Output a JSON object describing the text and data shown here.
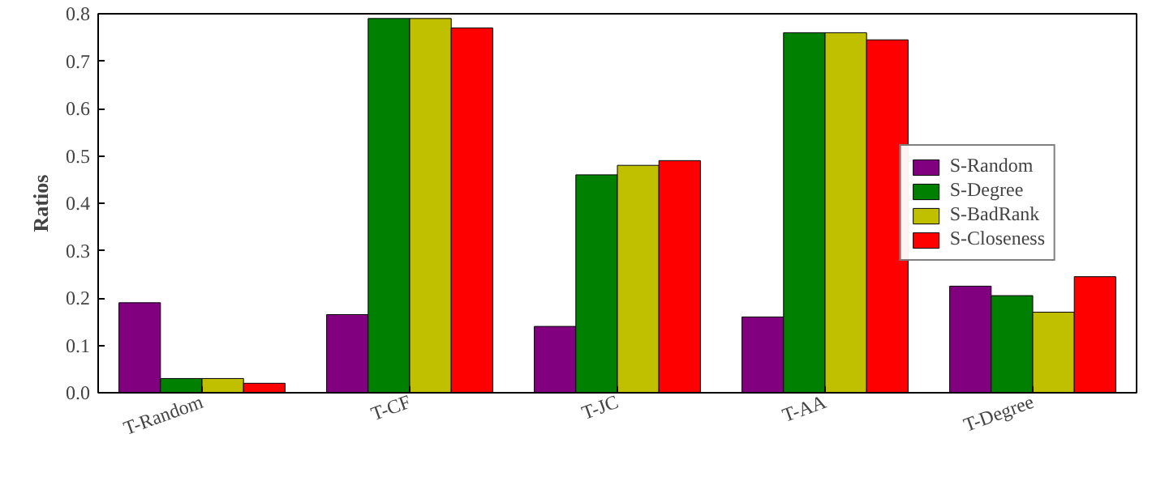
{
  "chart_data": {
    "type": "bar",
    "ylabel": "Ratios",
    "categories": [
      "T-Random",
      "T-CF",
      "T-JC",
      "T-AA",
      "T-Degree"
    ],
    "series": [
      {
        "name": "S-Random",
        "color": "#800080",
        "values": [
          0.19,
          0.165,
          0.14,
          0.16,
          0.225
        ]
      },
      {
        "name": "S-Degree",
        "color": "#008000",
        "values": [
          0.03,
          0.79,
          0.46,
          0.76,
          0.205
        ]
      },
      {
        "name": "S-BadRank",
        "color": "#c0c000",
        "values": [
          0.03,
          0.79,
          0.48,
          0.76,
          0.17
        ]
      },
      {
        "name": "S-Closeness",
        "color": "#ff0000",
        "values": [
          0.02,
          0.77,
          0.49,
          0.745,
          0.245
        ]
      }
    ],
    "ylim": [
      0,
      0.8
    ],
    "yticks": [
      {
        "value": 0,
        "label": "0.0"
      },
      {
        "value": 0.1,
        "label": "0.1"
      },
      {
        "value": 0.2,
        "label": "0.2"
      },
      {
        "value": 0.3,
        "label": "0.3"
      },
      {
        "value": 0.4,
        "label": "0.4"
      },
      {
        "value": 0.5,
        "label": "0.5"
      },
      {
        "value": 0.6,
        "label": "0.6"
      },
      {
        "value": 0.7,
        "label": "0.7"
      },
      {
        "value": 0.8,
        "label": "0.8"
      }
    ],
    "grid": false,
    "legend": "right"
  }
}
